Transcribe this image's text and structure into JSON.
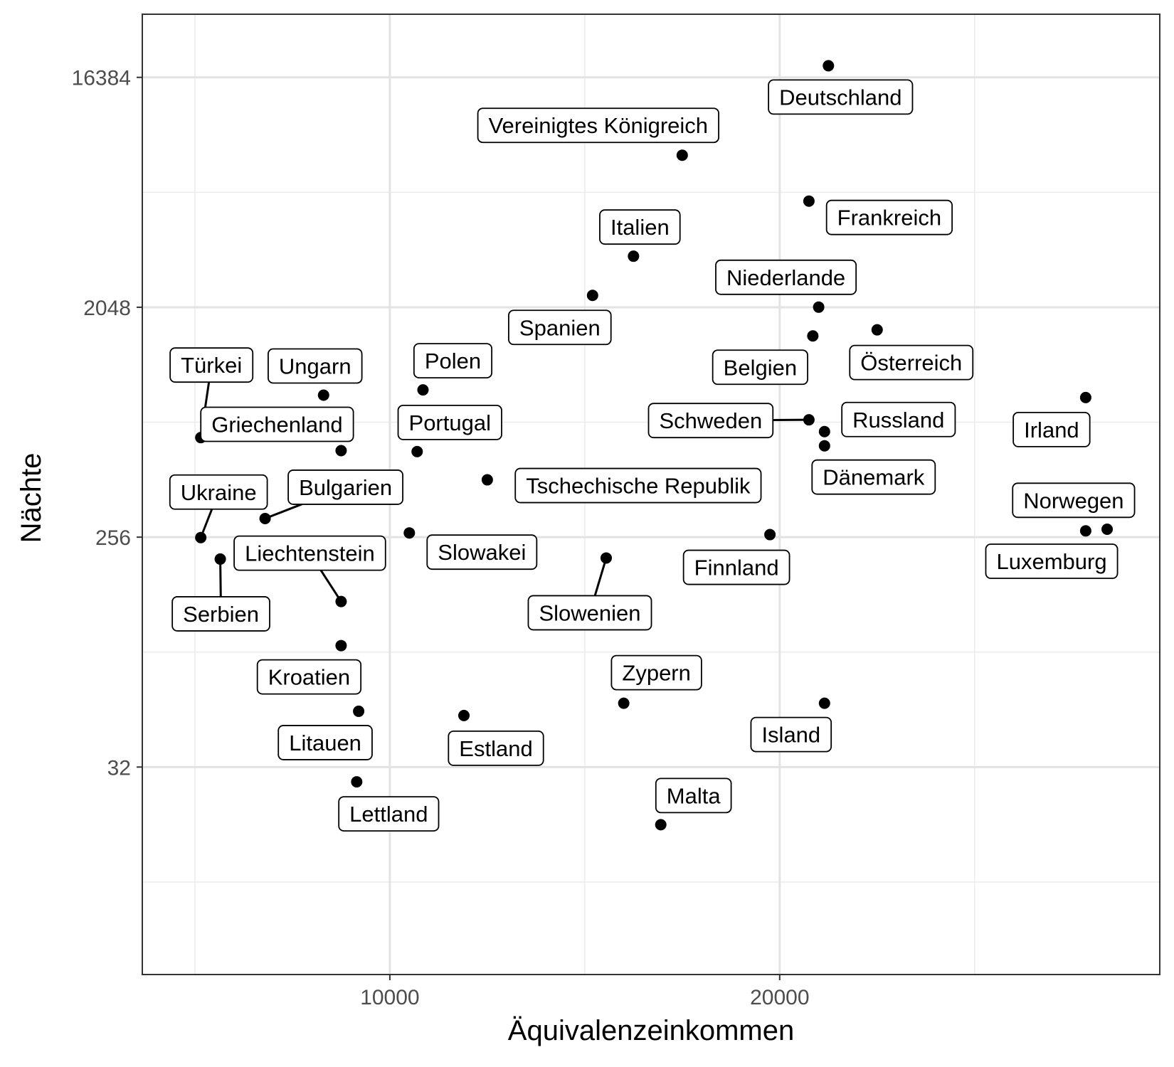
{
  "chart_data": {
    "type": "scatter",
    "xlabel": "Äquivalenzeinkommen",
    "ylabel": "Nächte",
    "x_ticks": [
      10000,
      20000
    ],
    "y_ticks": [
      32,
      256,
      2048,
      16384
    ],
    "y_scale": "log2",
    "xlim": [
      3650,
      29750
    ],
    "ylim": [
      4.9,
      29000
    ],
    "grid": true,
    "points": [
      {
        "label": "Deutschland",
        "x": 21250,
        "y": 18200
      },
      {
        "label": "Vereinigtes Königreich",
        "x": 17500,
        "y": 8100
      },
      {
        "label": "Frankreich",
        "x": 20750,
        "y": 5350
      },
      {
        "label": "Italien",
        "x": 16250,
        "y": 3250
      },
      {
        "label": "Spanien",
        "x": 15200,
        "y": 2280
      },
      {
        "label": "Niederlande",
        "x": 21000,
        "y": 2050
      },
      {
        "label": "Belgien",
        "x": 20850,
        "y": 1580
      },
      {
        "label": "Österreich",
        "x": 22500,
        "y": 1670
      },
      {
        "label": "Türkei",
        "x": 5150,
        "y": 630
      },
      {
        "label": "Ungarn",
        "x": 8300,
        "y": 925
      },
      {
        "label": "Griechenland",
        "x": 8750,
        "y": 560
      },
      {
        "label": "Polen",
        "x": 10850,
        "y": 970
      },
      {
        "label": "Portugal",
        "x": 10700,
        "y": 555
      },
      {
        "label": "Schweden",
        "x": 20750,
        "y": 740
      },
      {
        "label": "Russland",
        "x": 21150,
        "y": 665
      },
      {
        "label": "Dänemark",
        "x": 21150,
        "y": 585
      },
      {
        "label": "Irland",
        "x": 27850,
        "y": 905
      },
      {
        "label": "Tschechische Republik",
        "x": 12500,
        "y": 430
      },
      {
        "label": "Ukraine",
        "x": 5150,
        "y": 255
      },
      {
        "label": "Bulgarien",
        "x": 6800,
        "y": 303
      },
      {
        "label": "Serbien",
        "x": 5650,
        "y": 210
      },
      {
        "label": "Liechtenstein",
        "x": 8750,
        "y": 143
      },
      {
        "label": "Slowakei",
        "x": 10500,
        "y": 266
      },
      {
        "label": "Slowenien",
        "x": 15550,
        "y": 212
      },
      {
        "label": "Finnland",
        "x": 19750,
        "y": 262
      },
      {
        "label": "Norwegen",
        "x": 27850,
        "y": 271
      },
      {
        "label": "Luxemburg",
        "x": 28400,
        "y": 275
      },
      {
        "label": "Kroatien",
        "x": 8750,
        "y": 96
      },
      {
        "label": "Litauen",
        "x": 9200,
        "y": 53
      },
      {
        "label": "Estland",
        "x": 11900,
        "y": 51
      },
      {
        "label": "Zypern",
        "x": 16000,
        "y": 57
      },
      {
        "label": "Island",
        "x": 21150,
        "y": 57
      },
      {
        "label": "Lettland",
        "x": 9150,
        "y": 28
      },
      {
        "label": "Malta",
        "x": 16950,
        "y": 19
      }
    ]
  }
}
